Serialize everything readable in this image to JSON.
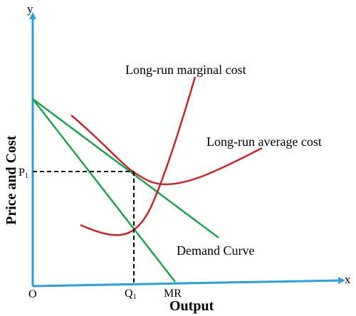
{
  "axes": {
    "y_letter": "y",
    "x_letter": "x",
    "origin": "O",
    "y_title": "Price and Cost",
    "x_title": "Output"
  },
  "ticks": {
    "price_main": "P",
    "price_sub": "1",
    "qty_main": "Q",
    "qty_sub": "1",
    "mr": "MR"
  },
  "curves": {
    "lrmc": "Long-run marginal cost",
    "lrac": "Long-run average cost",
    "demand": "Demand Curve"
  },
  "colors": {
    "axis": "#2a9fd8",
    "cost_curve": "#c0282d",
    "revenue_line": "#1aa34a",
    "guide": "#000000"
  }
}
